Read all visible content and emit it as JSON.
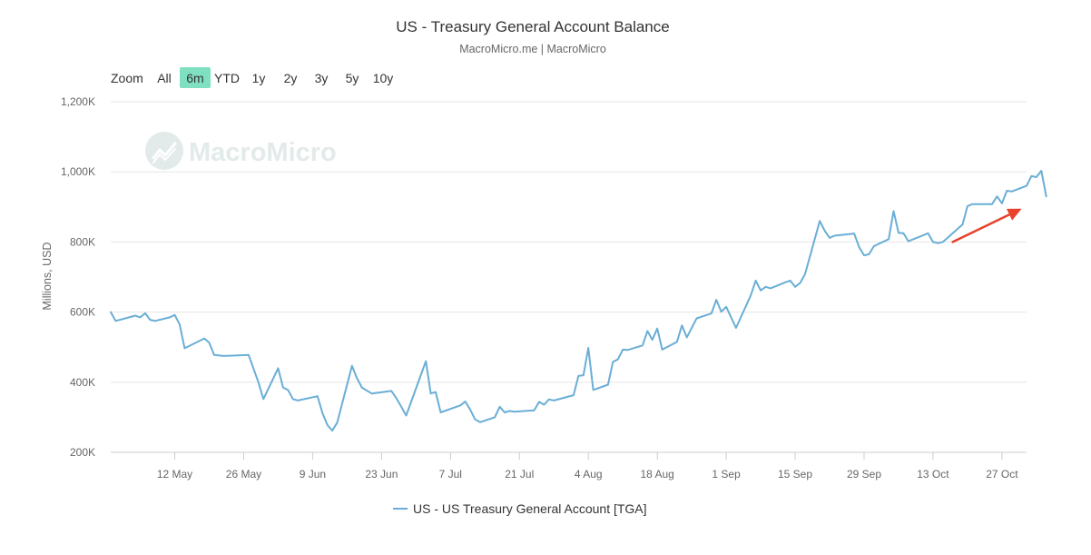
{
  "header": {
    "title": "US - Treasury General Account Balance",
    "subtitle": "MacroMicro.me | MacroMicro"
  },
  "zoom": {
    "label": "Zoom",
    "buttons": [
      "All",
      "6m",
      "YTD",
      "1y",
      "2y",
      "3y",
      "5y",
      "10y"
    ],
    "selected": "6m"
  },
  "watermark": {
    "text": "MacroMicro"
  },
  "colors": {
    "line": "#6aaed6",
    "selected_zoom_bg": "#7fe0c1",
    "grid": "#e6e6e6",
    "arrow": "#e8412c",
    "watermark": "#e3eaea"
  },
  "annotation": {
    "type": "arrow",
    "direction": "up-right",
    "start": [
      "2025-10-17",
      800
    ],
    "end": [
      "2025-10-31",
      895
    ]
  },
  "chart_data": {
    "type": "line",
    "title": "US - Treasury General Account Balance",
    "subtitle": "MacroMicro.me | MacroMicro",
    "ylabel": "Millions, USD",
    "xlabel": "",
    "ylim": [
      200,
      1200
    ],
    "y_ticks": [
      "200K",
      "400K",
      "600K",
      "800K",
      "1,000K",
      "1,200K"
    ],
    "y_tick_values": [
      200,
      400,
      600,
      800,
      1000,
      1200
    ],
    "xlim": [
      "2025-04-29",
      "2025-11-01"
    ],
    "x_ticks": [
      "12 May",
      "26 May",
      "9 Jun",
      "23 Jun",
      "7 Jul",
      "21 Jul",
      "4 Aug",
      "18 Aug",
      "1 Sep",
      "15 Sep",
      "29 Sep",
      "13 Oct",
      "27 Oct"
    ],
    "x_tick_dates": [
      "2025-05-12",
      "2025-05-26",
      "2025-06-09",
      "2025-06-23",
      "2025-07-07",
      "2025-07-21",
      "2025-08-04",
      "2025-08-18",
      "2025-09-01",
      "2025-09-15",
      "2025-09-29",
      "2025-10-13",
      "2025-10-27"
    ],
    "grid": true,
    "legend": "bottom-center",
    "series": [
      {
        "name": "US - US Treasury General Account [TGA]",
        "points": [
          [
            "2025-04-29",
            600
          ],
          [
            "2025-04-30",
            575
          ],
          [
            "2025-05-04",
            590
          ],
          [
            "2025-05-05",
            585
          ],
          [
            "2025-05-06",
            597
          ],
          [
            "2025-05-07",
            578
          ],
          [
            "2025-05-08",
            575
          ],
          [
            "2025-05-11",
            585
          ],
          [
            "2025-05-12",
            592
          ],
          [
            "2025-05-13",
            565
          ],
          [
            "2025-05-14",
            497
          ],
          [
            "2025-05-18",
            525
          ],
          [
            "2025-05-19",
            513
          ],
          [
            "2025-05-20",
            478
          ],
          [
            "2025-05-22",
            475
          ],
          [
            "2025-05-27",
            478
          ],
          [
            "2025-05-29",
            400
          ],
          [
            "2025-05-30",
            352
          ],
          [
            "2025-06-02",
            440
          ],
          [
            "2025-06-03",
            385
          ],
          [
            "2025-06-04",
            378
          ],
          [
            "2025-06-05",
            352
          ],
          [
            "2025-06-06",
            348
          ],
          [
            "2025-06-10",
            360
          ],
          [
            "2025-06-11",
            312
          ],
          [
            "2025-06-12",
            278
          ],
          [
            "2025-06-13",
            262
          ],
          [
            "2025-06-14",
            285
          ],
          [
            "2025-06-17",
            447
          ],
          [
            "2025-06-18",
            412
          ],
          [
            "2025-06-19",
            385
          ],
          [
            "2025-06-21",
            368
          ],
          [
            "2025-06-25",
            375
          ],
          [
            "2025-06-26",
            355
          ],
          [
            "2025-06-27",
            330
          ],
          [
            "2025-06-28",
            305
          ],
          [
            "2025-07-02",
            460
          ],
          [
            "2025-07-03",
            368
          ],
          [
            "2025-07-04",
            372
          ],
          [
            "2025-07-05",
            314
          ],
          [
            "2025-07-09",
            334
          ],
          [
            "2025-07-10",
            345
          ],
          [
            "2025-07-11",
            322
          ],
          [
            "2025-07-12",
            294
          ],
          [
            "2025-07-13",
            286
          ],
          [
            "2025-07-16",
            300
          ],
          [
            "2025-07-17",
            330
          ],
          [
            "2025-07-18",
            314
          ],
          [
            "2025-07-19",
            318
          ],
          [
            "2025-07-20",
            316
          ],
          [
            "2025-07-24",
            320
          ],
          [
            "2025-07-25",
            344
          ],
          [
            "2025-07-26",
            336
          ],
          [
            "2025-07-27",
            351
          ],
          [
            "2025-07-28",
            348
          ],
          [
            "2025-08-01",
            363
          ],
          [
            "2025-08-02",
            418
          ],
          [
            "2025-08-03",
            420
          ],
          [
            "2025-08-04",
            498
          ],
          [
            "2025-08-05",
            378
          ],
          [
            "2025-08-08",
            393
          ],
          [
            "2025-08-09",
            458
          ],
          [
            "2025-08-10",
            465
          ],
          [
            "2025-08-11",
            493
          ],
          [
            "2025-08-12",
            492
          ],
          [
            "2025-08-15",
            505
          ],
          [
            "2025-08-16",
            546
          ],
          [
            "2025-08-17",
            521
          ],
          [
            "2025-08-18",
            553
          ],
          [
            "2025-08-19",
            493
          ],
          [
            "2025-08-22",
            515
          ],
          [
            "2025-08-23",
            562
          ],
          [
            "2025-08-24",
            528
          ],
          [
            "2025-08-26",
            582
          ],
          [
            "2025-08-29",
            596
          ],
          [
            "2025-08-30",
            635
          ],
          [
            "2025-08-31",
            601
          ],
          [
            "2025-09-01",
            615
          ],
          [
            "2025-09-03",
            555
          ],
          [
            "2025-09-06",
            648
          ],
          [
            "2025-09-07",
            690
          ],
          [
            "2025-09-08",
            662
          ],
          [
            "2025-09-09",
            672
          ],
          [
            "2025-09-10",
            668
          ],
          [
            "2025-09-13",
            685
          ],
          [
            "2025-09-14",
            690
          ],
          [
            "2025-09-15",
            672
          ],
          [
            "2025-09-16",
            683
          ],
          [
            "2025-09-17",
            708
          ],
          [
            "2025-09-20",
            860
          ],
          [
            "2025-09-21",
            832
          ],
          [
            "2025-09-22",
            812
          ],
          [
            "2025-09-23",
            818
          ],
          [
            "2025-09-27",
            824
          ],
          [
            "2025-09-28",
            785
          ],
          [
            "2025-09-29",
            762
          ],
          [
            "2025-09-30",
            765
          ],
          [
            "2025-10-01",
            788
          ],
          [
            "2025-10-04",
            808
          ],
          [
            "2025-10-05",
            888
          ],
          [
            "2025-10-06",
            826
          ],
          [
            "2025-10-07",
            825
          ],
          [
            "2025-10-08",
            802
          ],
          [
            "2025-10-12",
            825
          ],
          [
            "2025-10-13",
            800
          ],
          [
            "2025-10-14",
            797
          ],
          [
            "2025-10-15",
            800
          ],
          [
            "2025-10-19",
            850
          ],
          [
            "2025-10-20",
            902
          ],
          [
            "2025-10-21",
            908
          ],
          [
            "2025-10-25",
            908
          ],
          [
            "2025-10-26",
            930
          ],
          [
            "2025-10-27",
            910
          ],
          [
            "2025-10-28",
            946
          ],
          [
            "2025-10-29",
            944
          ],
          [
            "2025-11-01",
            960
          ],
          [
            "2025-11-02",
            988
          ],
          [
            "2025-11-03",
            985
          ],
          [
            "2025-11-04",
            1003
          ],
          [
            "2025-11-05",
            930
          ]
        ]
      }
    ]
  }
}
